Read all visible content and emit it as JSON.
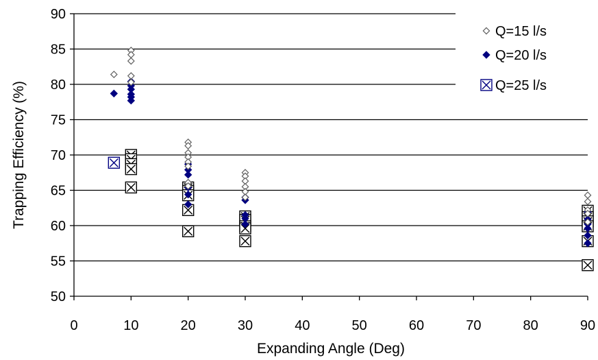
{
  "chart_data": {
    "type": "scatter",
    "title": "",
    "xlabel": "Expanding Angle (Deg)",
    "ylabel": "Trapping Efficiency (%)",
    "xlim": [
      0,
      90
    ],
    "ylim": [
      50,
      90
    ],
    "xticks": [
      "0",
      "10",
      "20",
      "30",
      "40",
      "50",
      "60",
      "70",
      "80",
      "90"
    ],
    "yticks": [
      "50",
      "55",
      "60",
      "65",
      "70",
      "75",
      "80",
      "85",
      "90"
    ],
    "grid": "horizontal",
    "legend_position": "top-right",
    "series": [
      {
        "name": "Q=15 l/s",
        "marker": "diamond-open",
        "color": "#606060",
        "points": [
          [
            7,
            81.4
          ],
          [
            10,
            84.8
          ],
          [
            10,
            84.2
          ],
          [
            10,
            83.3
          ],
          [
            10,
            81.2
          ],
          [
            10,
            80.3
          ],
          [
            20,
            71.8
          ],
          [
            20,
            71.3
          ],
          [
            20,
            70.3
          ],
          [
            20,
            69.7
          ],
          [
            20,
            69.0
          ],
          [
            20,
            68.4
          ],
          [
            20,
            66.1
          ],
          [
            20,
            65.6
          ],
          [
            30,
            67.5
          ],
          [
            30,
            67.0
          ],
          [
            30,
            66.3
          ],
          [
            30,
            65.5
          ],
          [
            30,
            64.8
          ],
          [
            30,
            64.0
          ],
          [
            90,
            64.3
          ],
          [
            90,
            63.4
          ],
          [
            90,
            62.2
          ],
          [
            90,
            61.7
          ],
          [
            90,
            60.5
          ]
        ]
      },
      {
        "name": "Q=20 l/s",
        "marker": "diamond-filled",
        "color": "#000080",
        "points": [
          [
            7,
            78.7
          ],
          [
            10,
            80.4
          ],
          [
            10,
            79.8
          ],
          [
            10,
            79.3
          ],
          [
            10,
            78.6
          ],
          [
            10,
            78.2
          ],
          [
            10,
            77.7
          ],
          [
            20,
            68.7
          ],
          [
            20,
            67.9
          ],
          [
            20,
            67.2
          ],
          [
            20,
            65.4
          ],
          [
            20,
            64.4
          ],
          [
            20,
            63.0
          ],
          [
            30,
            64.0
          ],
          [
            30,
            63.6
          ],
          [
            30,
            61.5
          ],
          [
            30,
            61.0
          ],
          [
            30,
            60.2
          ],
          [
            90,
            61.9
          ],
          [
            90,
            60.9
          ],
          [
            90,
            60.2
          ],
          [
            90,
            59.6
          ],
          [
            90,
            58.6
          ],
          [
            90,
            57.5
          ]
        ]
      },
      {
        "name": "Q=25 l/s",
        "marker": "square-x",
        "color": "#000000",
        "points": [
          [
            7,
            68.9
          ],
          [
            10,
            70.0
          ],
          [
            10,
            69.4
          ],
          [
            10,
            68.7
          ],
          [
            10,
            68.0
          ],
          [
            10,
            65.4
          ],
          [
            20,
            65.4
          ],
          [
            20,
            64.9
          ],
          [
            20,
            64.3
          ],
          [
            20,
            62.2
          ],
          [
            20,
            59.2
          ],
          [
            30,
            61.3
          ],
          [
            30,
            60.8
          ],
          [
            30,
            59.9
          ],
          [
            30,
            59.6
          ],
          [
            30,
            57.8
          ],
          [
            90,
            62.1
          ],
          [
            90,
            61.2
          ],
          [
            90,
            60.6
          ],
          [
            90,
            59.9
          ],
          [
            90,
            57.8
          ],
          [
            90,
            54.4
          ]
        ]
      }
    ]
  }
}
